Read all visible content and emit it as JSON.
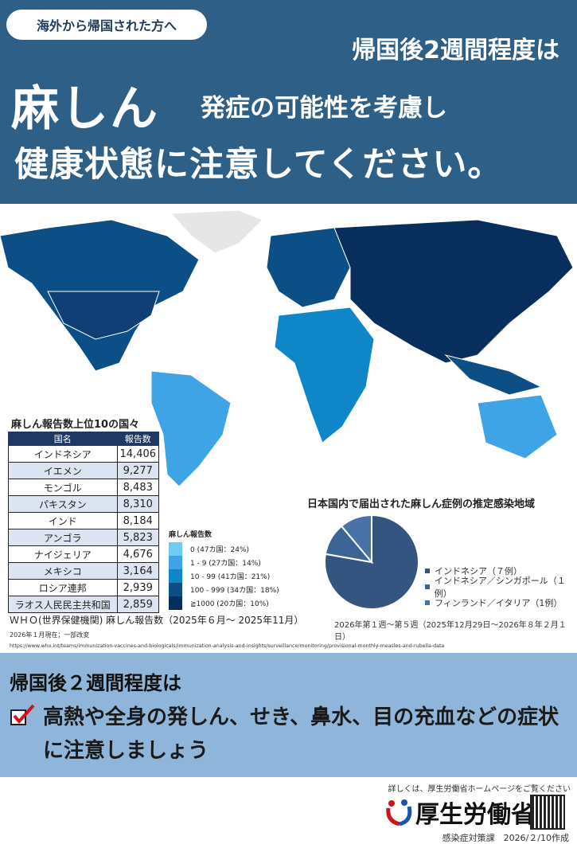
{
  "header": {
    "badge": "海外から帰国された方へ",
    "line1": "帰国後2週間程度は",
    "disease": "麻しん",
    "line2": "発症の可能性を考慮し",
    "line3": "健康状態に注意してください。"
  },
  "table": {
    "title": "麻しん報告数上位10の国々",
    "headers": [
      "国名",
      "報告数"
    ],
    "rows": [
      [
        "インドネシア",
        "14,406"
      ],
      [
        "イエメン",
        "9,277"
      ],
      [
        "モンゴル",
        "8,483"
      ],
      [
        "パキスタン",
        "8,310"
      ],
      [
        "インド",
        "8,184"
      ],
      [
        "アンゴラ",
        "5,823"
      ],
      [
        "ナイジェリア",
        "4,676"
      ],
      [
        "メキシコ",
        "3,164"
      ],
      [
        "ロシア連邦",
        "2,939"
      ],
      [
        "ラオス人民民主共和国",
        "2,859"
      ]
    ]
  },
  "map_legend": {
    "title": "麻しん報告数",
    "items": [
      {
        "label": "0 (47カ国：24%)",
        "color": "#6fcbf2"
      },
      {
        "label": "1 - 9 (27カ国：14%)",
        "color": "#3fa4e6"
      },
      {
        "label": "10 - 99 (41カ国：21%)",
        "color": "#0f86c8"
      },
      {
        "label": "100 - 999 (34カ国：18%)",
        "color": "#0b4f86"
      },
      {
        "label": "≧1000 (20カ国：10%)",
        "color": "#082e5e"
      }
    ]
  },
  "source": {
    "caption": "ＷＨＯ(世界保健機関) 麻しん報告数（2025年６月～ 2025年11月）",
    "as_of": "2026年１月現在；一部改変",
    "url": "https://www.who.int/teams/immunization-vaccines-and-biologicals/immunization-analysis-and-insights/surveillance/monitoring/provisional-monthly-measles-and-rubella-data"
  },
  "chart_data": {
    "type": "pie",
    "title": "日本国内で届出された麻しん症例の推定感染地域",
    "categories": [
      "インドネシア（７例）",
      "インドネシア／シンガポール（１例）",
      "フィンランド／イタリア（1例）"
    ],
    "values": [
      7,
      1,
      1
    ],
    "colors": [
      "#34557f",
      "#3c6596",
      "#4873a8"
    ],
    "legend": "right",
    "note": "2026年第１週～第５週（2025年12月29日～2026年８年２月１日）"
  },
  "notice": {
    "title": "帰国後２週間程度は",
    "body": "高熱や全身の発しん、せき、鼻水、目の充血などの症状に注意しましょう"
  },
  "footer": {
    "more": "詳しくは、厚生労働省ホームページをご覧ください",
    "ministry": "厚生労働省",
    "dept": "感染症対策課　2026/２/10作成"
  }
}
